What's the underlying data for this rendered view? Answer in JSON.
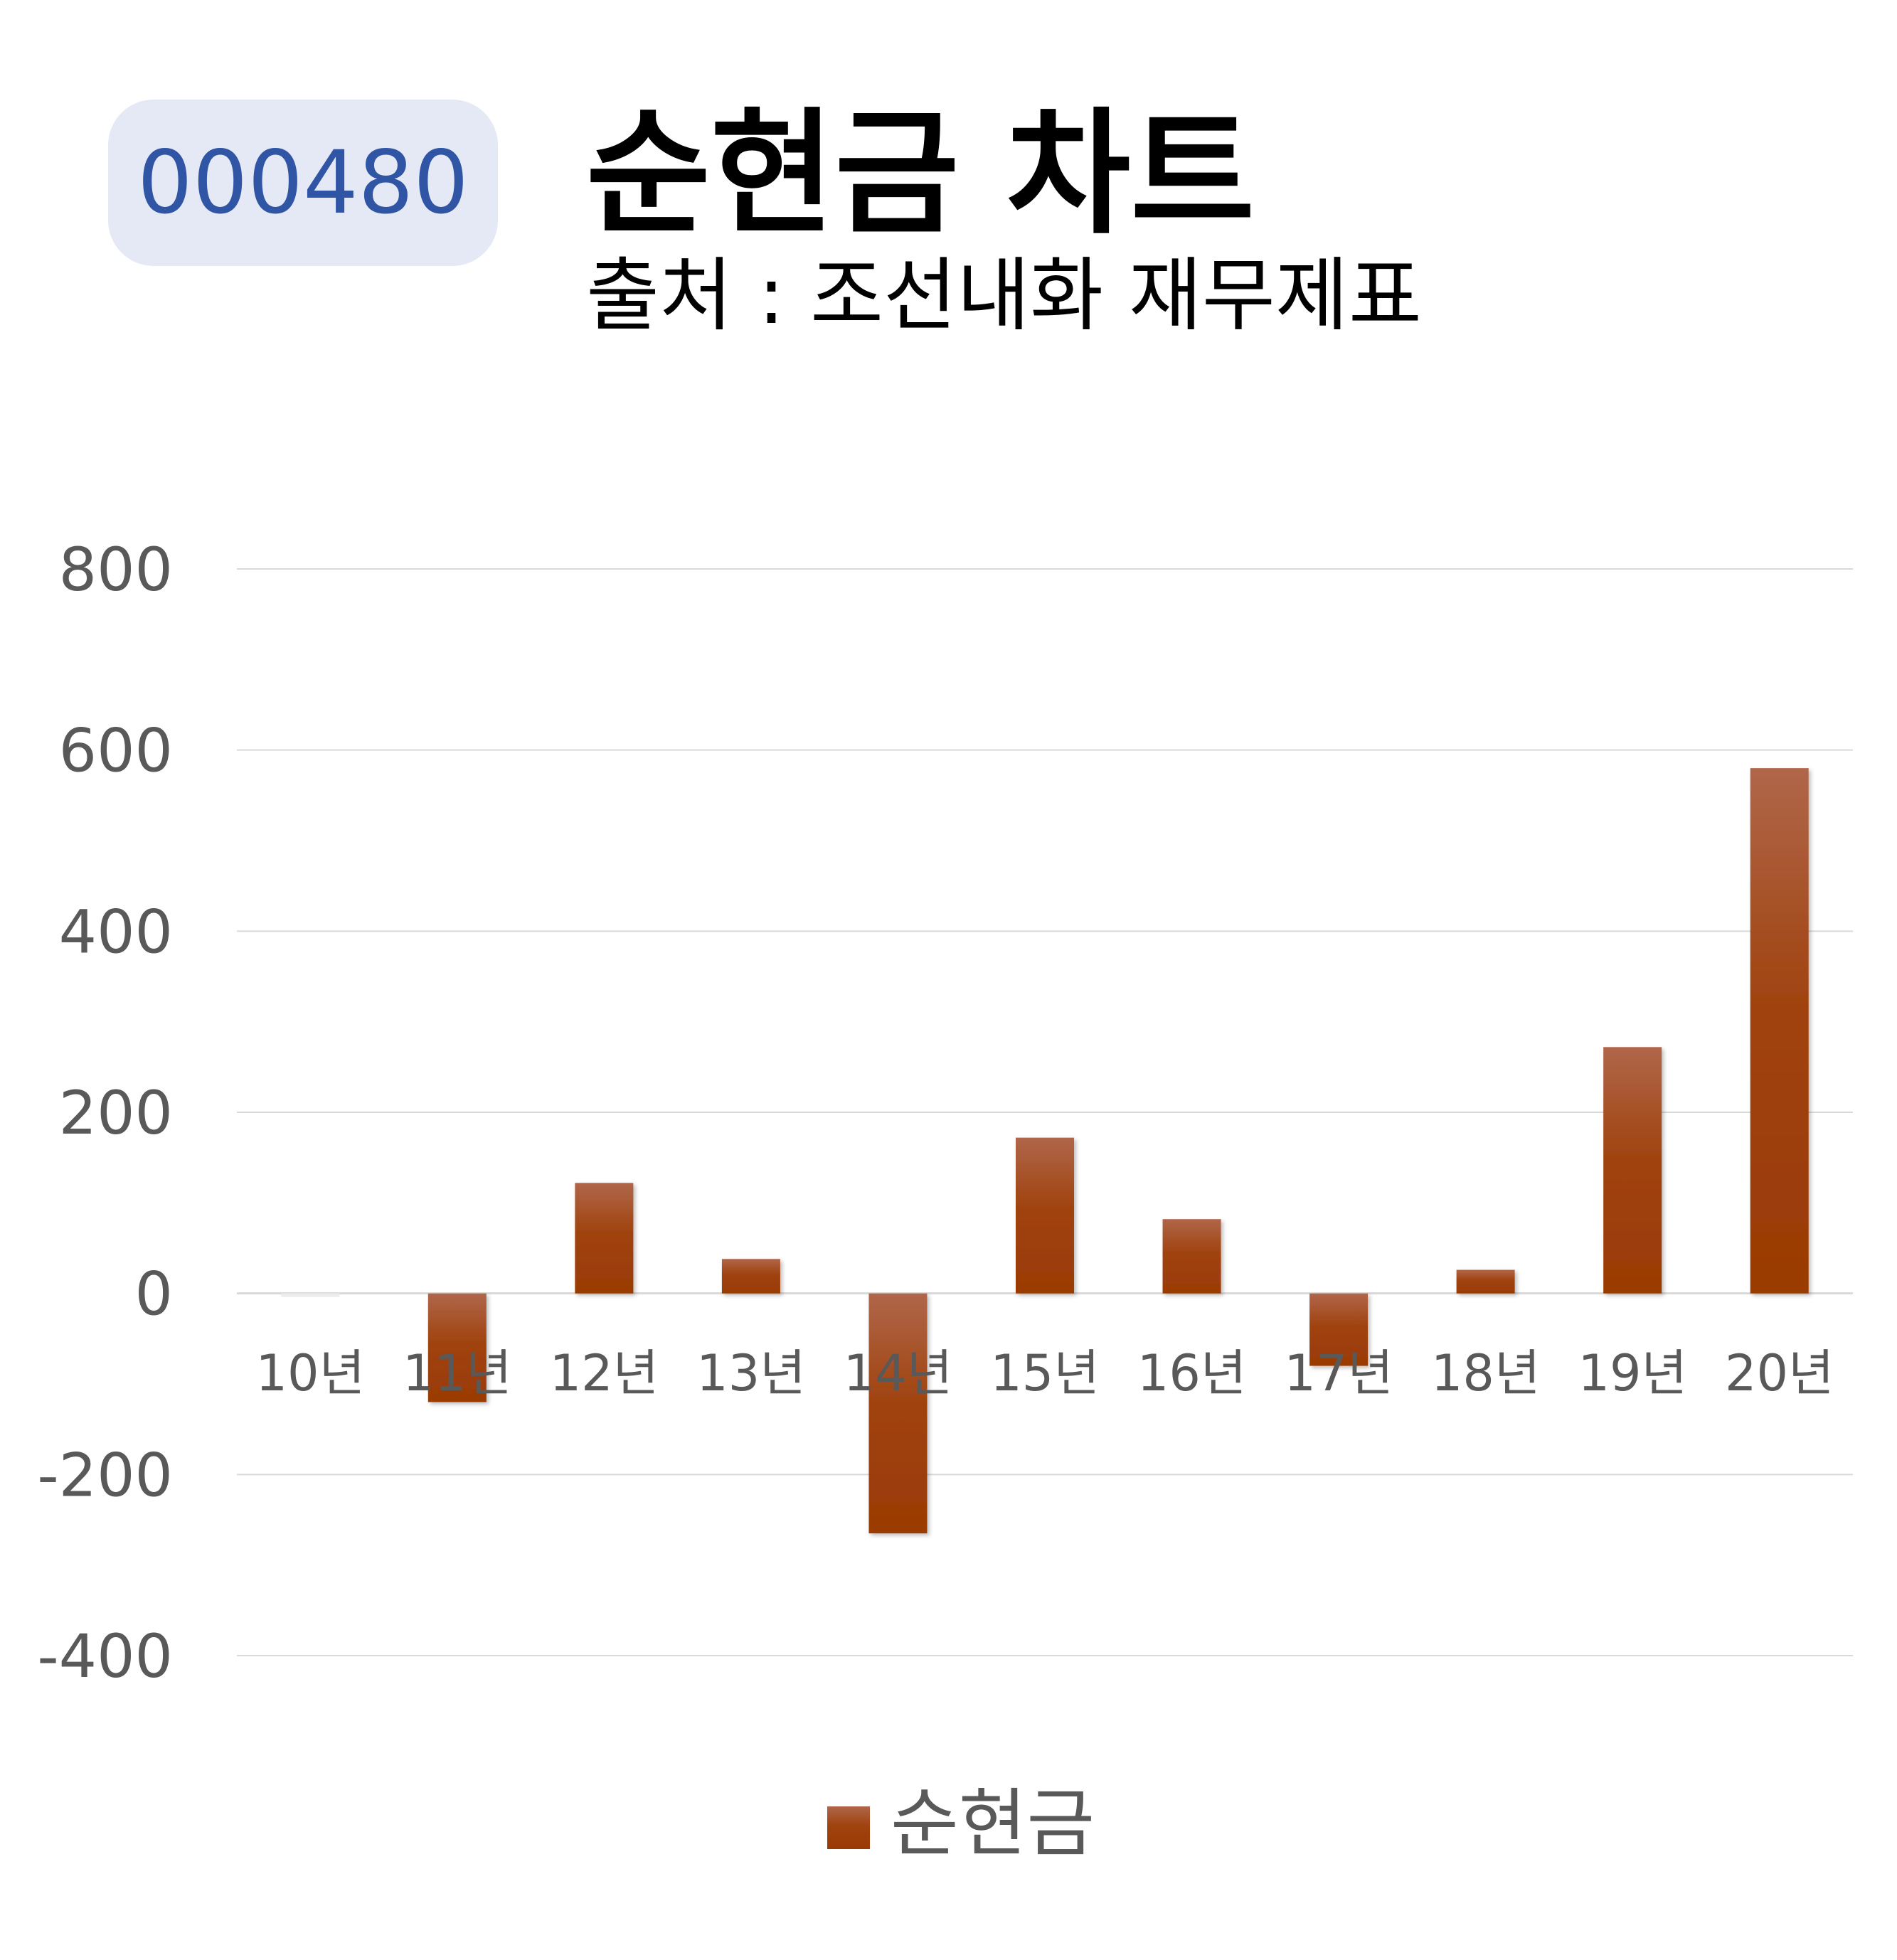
{
  "badge": {
    "code": "000480"
  },
  "header": {
    "title": "순현금 차트",
    "subtitle": "출처 : 조선내화 재무제표"
  },
  "colors": {
    "bar_top": "#b0664a",
    "bar_bottom": "#9a3a04",
    "badge_bg": "#e4e9f5",
    "badge_text": "#2f55a4",
    "grid": "#d9d9d9",
    "tick_text": "#595959"
  },
  "chart_data": {
    "type": "bar",
    "categories": [
      "10년",
      "11년",
      "12년",
      "13년",
      "14년",
      "15년",
      "16년",
      "17년",
      "18년",
      "19년",
      "20년"
    ],
    "series": [
      {
        "name": "순현금",
        "values": [
          -5,
          -120,
          122,
          38,
          -265,
          172,
          82,
          -80,
          26,
          272,
          580
        ]
      }
    ],
    "ylim": [
      -400,
      800
    ],
    "yticks": [
      "800",
      "600",
      "400",
      "200",
      "0",
      "-200",
      "-400"
    ],
    "grid": true,
    "legend": "bottom-center"
  }
}
